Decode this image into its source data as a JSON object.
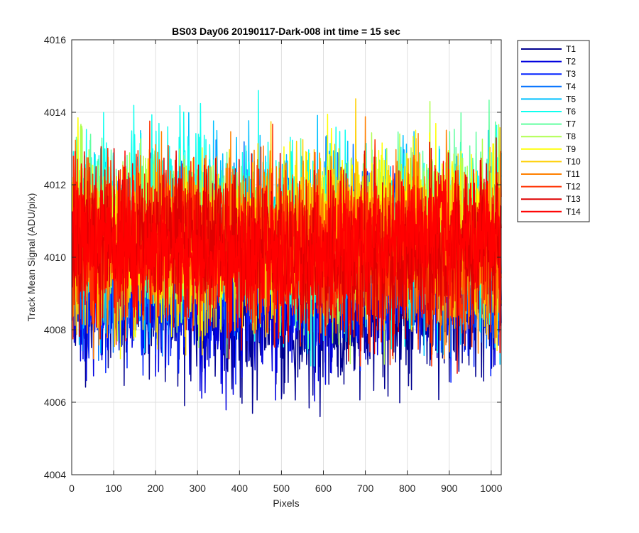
{
  "chart_data": {
    "type": "line",
    "title": "BS03 Day06 20190117-Dark-008 int time = 15 sec",
    "xlabel": "Pixels",
    "ylabel": "Track Mean Signal (ADU/pix)",
    "xlim": [
      0,
      1024
    ],
    "ylim": [
      4004,
      4016
    ],
    "xticks": [
      0,
      100,
      200,
      300,
      400,
      500,
      600,
      700,
      800,
      900,
      1000
    ],
    "yticks": [
      4004,
      4006,
      4008,
      4010,
      4012,
      4014,
      4016
    ],
    "grid": true,
    "legend_position": "outside-top-right",
    "series": [
      {
        "name": "T1",
        "color": "#00008F",
        "mean": 4008.6,
        "spread": 1.0,
        "seed": 11,
        "min": 4005.6,
        "max": 4012.0
      },
      {
        "name": "T2",
        "color": "#0000DF",
        "mean": 4009.1,
        "spread": 1.0,
        "seed": 23,
        "min": 4005.4,
        "max": 4012.5
      },
      {
        "name": "T3",
        "color": "#0020FF",
        "mean": 4009.6,
        "spread": 1.05,
        "seed": 37,
        "min": 4006.5,
        "max": 4013.0
      },
      {
        "name": "T4",
        "color": "#0070FF",
        "mean": 4010.3,
        "spread": 1.1,
        "seed": 41,
        "min": 4006.8,
        "max": 4014.2
      },
      {
        "name": "T5",
        "color": "#00C0FF",
        "mean": 4010.6,
        "spread": 1.15,
        "seed": 53,
        "min": 4006.6,
        "max": 4015.2
      },
      {
        "name": "T6",
        "color": "#10FFEF",
        "mean": 4010.8,
        "spread": 1.15,
        "seed": 67,
        "min": 4007.0,
        "max": 4014.6
      },
      {
        "name": "T7",
        "color": "#60FF9F",
        "mean": 4010.7,
        "spread": 1.1,
        "seed": 79,
        "min": 4007.2,
        "max": 4014.4
      },
      {
        "name": "T8",
        "color": "#AFFF50",
        "mean": 4010.6,
        "spread": 1.1,
        "seed": 83,
        "min": 4005.7,
        "max": 4014.3
      },
      {
        "name": "T9",
        "color": "#FFFF00",
        "mean": 4010.6,
        "spread": 1.1,
        "seed": 97,
        "min": 4007.2,
        "max": 4014.7
      },
      {
        "name": "T10",
        "color": "#FFCF00",
        "mean": 4010.5,
        "spread": 1.1,
        "seed": 101,
        "min": 4007.3,
        "max": 4014.5
      },
      {
        "name": "T11",
        "color": "#FF8000",
        "mean": 4010.4,
        "spread": 1.1,
        "seed": 113,
        "min": 4007.2,
        "max": 4014.6
      },
      {
        "name": "T12",
        "color": "#FF3000",
        "mean": 4010.3,
        "spread": 1.1,
        "seed": 127,
        "min": 4007.0,
        "max": 4015.0
      },
      {
        "name": "T13",
        "color": "#DF0000",
        "mean": 4010.2,
        "spread": 1.05,
        "seed": 131,
        "min": 4006.8,
        "max": 4014.8
      },
      {
        "name": "T14",
        "color": "#FF0000",
        "mean": 4010.2,
        "spread": 0.95,
        "seed": 149,
        "min": 4006.7,
        "max": 4013.5
      }
    ]
  }
}
